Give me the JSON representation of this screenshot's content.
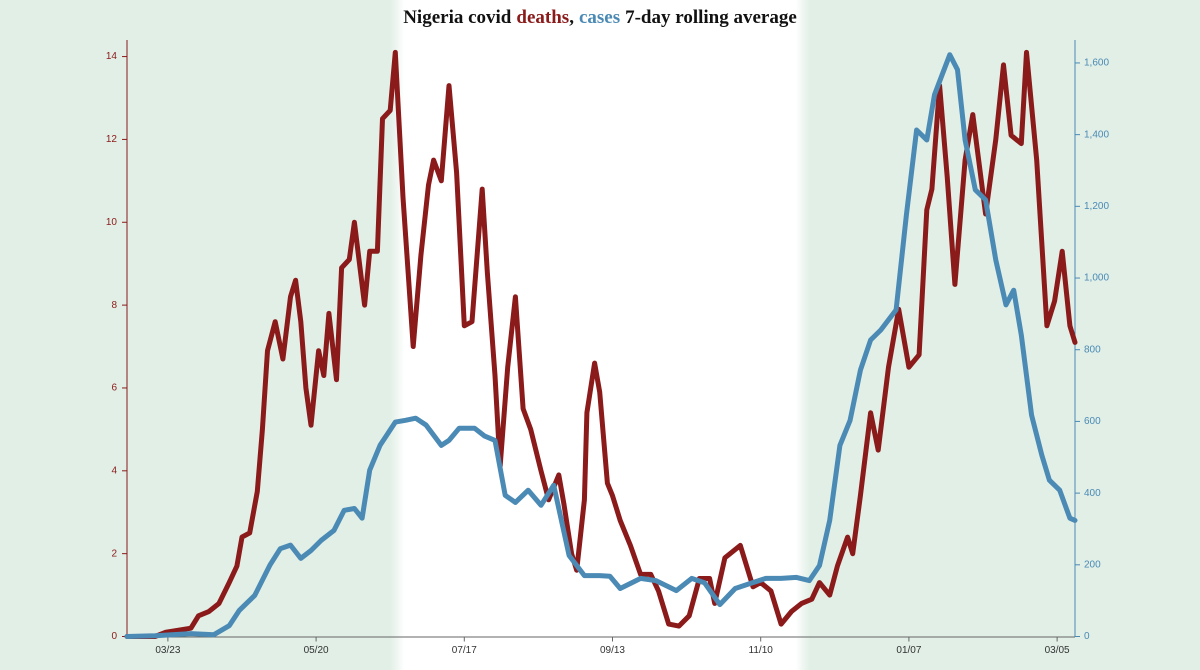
{
  "chart_data": {
    "type": "line",
    "title": {
      "before": "Nigeria covid",
      "between": ",",
      "after": "7-day rolling average"
    },
    "xlim": [
      -16,
      355
    ],
    "xticks": [
      {
        "value": 0,
        "label": "03/23"
      },
      {
        "value": 58,
        "label": "05/20"
      },
      {
        "value": 116,
        "label": "07/17"
      },
      {
        "value": 174,
        "label": "09/13"
      },
      {
        "value": 232,
        "label": "11/10"
      },
      {
        "value": 290,
        "label": "01/07"
      },
      {
        "value": 348,
        "label": "03/05"
      }
    ],
    "ylim": [
      0,
      14.4
    ],
    "yticks": [
      0,
      2,
      4,
      6,
      8,
      10,
      12,
      14
    ],
    "y2lim": [
      0,
      1664
    ],
    "y2ticks": [
      0,
      200,
      400,
      600,
      800,
      {
        "value": 1000,
        "label": "1,000"
      },
      {
        "value": 1200,
        "label": "1,200"
      },
      {
        "value": 1400,
        "label": "1,400"
      },
      {
        "value": 1600,
        "label": "1,600"
      }
    ],
    "series": [
      {
        "name": "deaths",
        "color": "#8b1a1a",
        "x": [
          -16,
          -5,
          -1,
          9,
          12,
          16,
          20,
          24,
          27,
          29,
          32,
          35,
          37,
          39,
          42,
          45,
          48,
          50,
          52,
          54,
          56,
          59,
          61,
          63,
          66,
          68,
          71,
          73,
          77,
          79,
          82,
          84,
          87,
          89,
          92,
          96,
          99,
          102,
          104,
          107,
          110,
          113,
          116,
          119,
          123,
          125,
          128,
          130,
          133,
          136,
          139,
          142,
          146,
          149,
          153,
          155,
          158,
          160,
          163,
          164,
          167,
          169,
          172,
          174,
          177,
          181,
          185,
          189,
          192,
          196,
          200,
          204,
          208,
          212,
          214,
          218,
          224,
          229,
          232,
          236,
          240,
          244,
          248,
          252,
          255,
          259,
          262,
          266,
          268,
          271,
          275,
          278,
          282,
          286,
          290,
          294,
          297,
          299,
          302,
          305,
          308,
          312,
          315,
          320,
          324,
          327,
          330,
          334,
          336,
          340,
          344,
          347,
          350,
          353,
          355
        ],
        "values": [
          0,
          0,
          0.1,
          0.2,
          0.5,
          0.6,
          0.8,
          1.3,
          1.7,
          2.4,
          2.5,
          3.5,
          5,
          6.9,
          7.6,
          6.7,
          8.2,
          8.6,
          7.6,
          6,
          5.1,
          6.9,
          6.3,
          7.8,
          6.2,
          8.9,
          9.1,
          10,
          8,
          9.3,
          9.3,
          12.5,
          12.7,
          14.1,
          10.6,
          7,
          9.2,
          10.9,
          11.5,
          11,
          13.3,
          11.2,
          7.5,
          7.6,
          10.8,
          8.8,
          6.3,
          4.1,
          6.5,
          8.2,
          5.5,
          5,
          4,
          3.3,
          3.9,
          3.2,
          2,
          1.6,
          3.3,
          5.4,
          6.6,
          5.9,
          3.7,
          3.4,
          2.8,
          2.2,
          1.5,
          1.5,
          1.1,
          0.3,
          0.25,
          0.5,
          1.4,
          1.4,
          0.8,
          1.9,
          2.2,
          1.2,
          1.3,
          1.1,
          0.3,
          0.6,
          0.8,
          0.9,
          1.3,
          1,
          1.7,
          2.4,
          2,
          3.4,
          5.4,
          4.5,
          6.5,
          7.9,
          6.5,
          6.8,
          10.3,
          10.8,
          13.3,
          11.1,
          8.5,
          11.5,
          12.6,
          10.2,
          12,
          13.8,
          12.1,
          11.9,
          14.1,
          11.5,
          7.5,
          8.1,
          9.3,
          7.5,
          7.1
        ]
      },
      {
        "name": "cases",
        "color": "#4a8ab5",
        "axis": "y2",
        "x": [
          -16,
          -5,
          9,
          18,
          24,
          28,
          34,
          40,
          44,
          48,
          52,
          56,
          60,
          65,
          69,
          73,
          76,
          79,
          83,
          89,
          93,
          97,
          101,
          107,
          110,
          114,
          120,
          124,
          128,
          132,
          136,
          141,
          146,
          151,
          157,
          163,
          169,
          173,
          177,
          185,
          191,
          199,
          205,
          210,
          216,
          222,
          228,
          234,
          240,
          246,
          251,
          255,
          259,
          263,
          267,
          271,
          275,
          279,
          285,
          289,
          293,
          297,
          300,
          303,
          306,
          309,
          312,
          316,
          320,
          324,
          328,
          331,
          334,
          338,
          342,
          345,
          349,
          353,
          355
        ],
        "values": [
          0,
          2,
          8,
          5,
          30,
          73,
          115,
          200,
          245,
          255,
          218,
          240,
          268,
          296,
          352,
          357,
          330,
          464,
          533,
          598,
          603,
          609,
          590,
          533,
          547,
          581,
          581,
          559,
          547,
          394,
          374,
          408,
          366,
          422,
          226,
          170,
          170,
          168,
          134,
          162,
          156,
          128,
          162,
          150,
          89,
          134,
          148,
          162,
          162,
          165,
          156,
          198,
          324,
          533,
          603,
          743,
          827,
          855,
          911,
          1176,
          1413,
          1385,
          1511,
          1567,
          1623,
          1581,
          1385,
          1246,
          1218,
          1050,
          925,
          966,
          841,
          617,
          506,
          436,
          408,
          330,
          324
        ]
      }
    ]
  }
}
